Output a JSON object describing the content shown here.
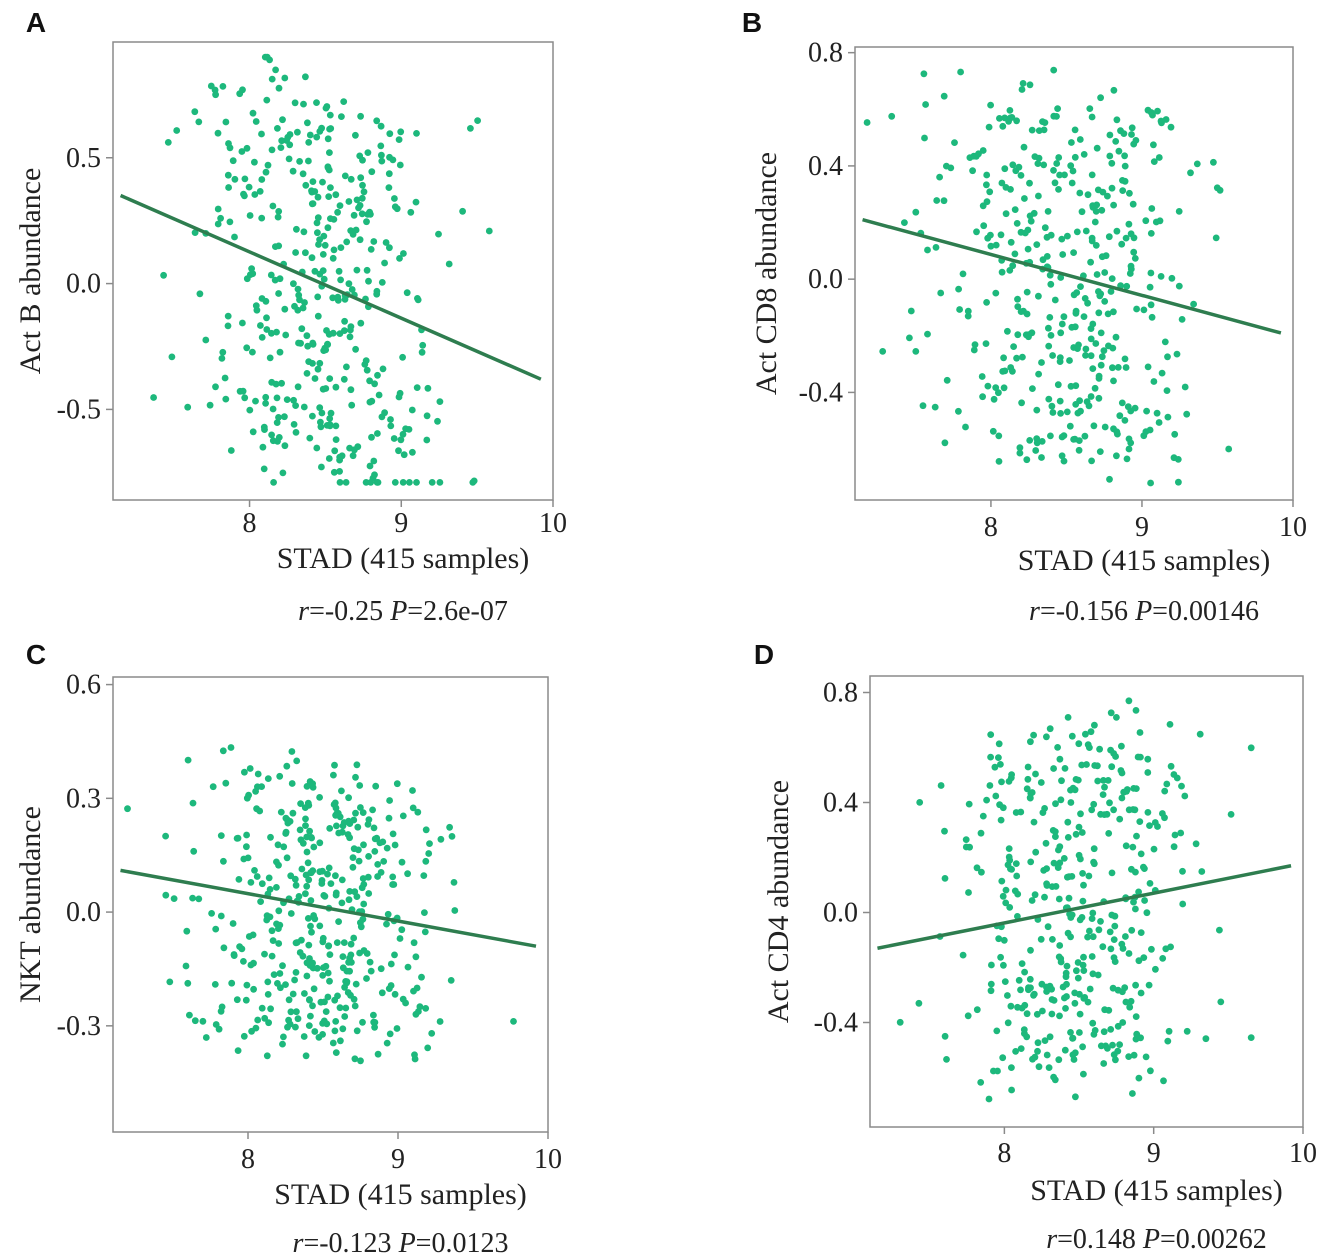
{
  "colors": {
    "points": "#1db87c",
    "fit_line": "#2e7d4f",
    "frame": "#8a8a8a"
  },
  "chart_data": [
    {
      "panel": "A",
      "type": "scatter",
      "xlabel": "STAD (415 samples)",
      "ylabel": "Act B abundance",
      "xlim": [
        7.1,
        10.0
      ],
      "ylim": [
        -0.86,
        0.96
      ],
      "xticks": [
        8,
        9,
        10
      ],
      "yticks": [
        0.5,
        0.0,
        -0.5
      ],
      "ytick_labels": [
        "0.5",
        "0.0",
        "-0.5"
      ],
      "stat": {
        "r_symbol": "r",
        "r_value": "=-0.25",
        "p_symbol": "P",
        "p_value": "=2.6e-07"
      },
      "fit": {
        "x": [
          7.15,
          9.92
        ],
        "y": [
          0.35,
          -0.38
        ]
      },
      "n_points": 415,
      "seed": 11,
      "y_mean": 0.0,
      "y_spread": 0.48,
      "y_min": -0.79,
      "y_max": 0.9
    },
    {
      "panel": "B",
      "type": "scatter",
      "xlabel": "STAD (415 samples)",
      "ylabel": "Act CD8 abundance",
      "xlim": [
        7.1,
        10.0
      ],
      "ylim": [
        -0.78,
        0.82
      ],
      "xticks": [
        8,
        9,
        10
      ],
      "yticks": [
        0.8,
        0.4,
        0.0,
        -0.4
      ],
      "ytick_labels": [
        "0.8",
        "0.4",
        "0.0",
        "-0.4"
      ],
      "stat": {
        "r_symbol": "r",
        "r_value": "=-0.156",
        "p_symbol": "P",
        "p_value": "=0.00146"
      },
      "fit": {
        "x": [
          7.15,
          9.92
        ],
        "y": [
          0.21,
          -0.19
        ]
      },
      "n_points": 415,
      "seed": 23,
      "y_mean": 0.0,
      "y_spread": 0.4,
      "y_min": -0.72,
      "y_max": 0.74
    },
    {
      "panel": "C",
      "type": "scatter",
      "xlabel": "STAD (415 samples)",
      "ylabel": "NKT abundance",
      "xlim": [
        7.1,
        10.0
      ],
      "ylim": [
        -0.58,
        0.62
      ],
      "xticks": [
        8,
        9,
        10
      ],
      "yticks": [
        0.6,
        0.3,
        0.0,
        -0.3
      ],
      "ytick_labels": [
        "0.6",
        "0.3",
        "0.0",
        "-0.3"
      ],
      "stat": {
        "r_symbol": "r",
        "r_value": "=-0.123",
        "p_symbol": "P",
        "p_value": "=0.0123"
      },
      "fit": {
        "x": [
          7.15,
          9.92
        ],
        "y": [
          0.11,
          -0.09
        ]
      },
      "n_points": 415,
      "seed": 37,
      "y_mean": 0.0,
      "y_spread": 0.22,
      "y_min": -0.53,
      "y_max": 0.57
    },
    {
      "panel": "D",
      "type": "scatter",
      "xlabel": "STAD (415 samples)",
      "ylabel": "Act CD4 abundance",
      "xlim": [
        7.1,
        10.0
      ],
      "ylim": [
        -0.78,
        0.86
      ],
      "xticks": [
        8,
        9,
        10
      ],
      "yticks": [
        0.8,
        0.4,
        0.0,
        -0.4
      ],
      "ytick_labels": [
        "0.8",
        "0.4",
        "0.0",
        "-0.4"
      ],
      "stat": {
        "r_symbol": "r",
        "r_value": "=0.148",
        "p_symbol": "P",
        "p_value": "=0.00262"
      },
      "fit": {
        "x": [
          7.15,
          9.92
        ],
        "y": [
          -0.13,
          0.17
        ]
      },
      "n_points": 415,
      "seed": 53,
      "y_mean": 0.0,
      "y_spread": 0.4,
      "y_min": -0.71,
      "y_max": 0.77
    }
  ]
}
